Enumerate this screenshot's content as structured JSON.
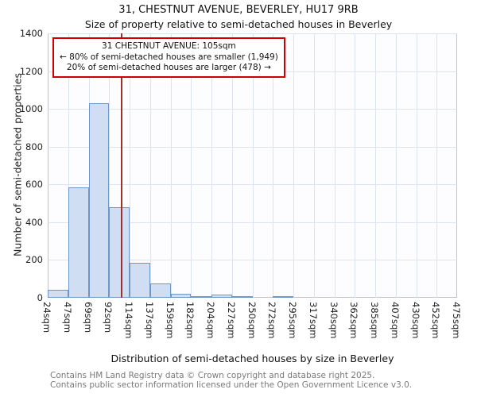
{
  "title": "31, CHESTNUT AVENUE, BEVERLEY, HU17 9RB",
  "subtitle": "Size of property relative to semi-detached houses in Beverley",
  "chart_data": {
    "type": "bar",
    "title": "31, CHESTNUT AVENUE, BEVERLEY, HU17 9RB",
    "subtitle": "Size of property relative to semi-detached houses in Beverley",
    "xlabel": "Distribution of semi-detached houses by size in Beverley",
    "ylabel": "Number of semi-detached properties",
    "ylim": [
      0,
      1400
    ],
    "ytick_step": 200,
    "grid": true,
    "bin_edges_sqm": [
      24,
      47,
      69,
      92,
      114,
      137,
      159,
      182,
      204,
      227,
      250,
      272,
      295,
      317,
      340,
      362,
      385,
      407,
      430,
      452,
      475
    ],
    "x_tick_labels": [
      "24sqm",
      "47sqm",
      "69sqm",
      "92sqm",
      "114sqm",
      "137sqm",
      "159sqm",
      "182sqm",
      "204sqm",
      "227sqm",
      "250sqm",
      "272sqm",
      "295sqm",
      "317sqm",
      "340sqm",
      "362sqm",
      "385sqm",
      "407sqm",
      "430sqm",
      "452sqm",
      "475sqm"
    ],
    "values": [
      40,
      585,
      1030,
      480,
      185,
      75,
      20,
      10,
      15,
      8,
      0,
      10,
      0,
      0,
      0,
      0,
      0,
      0,
      0,
      0
    ],
    "marker_value_sqm": 105,
    "marker_color": "#9e2f2f",
    "bar_fill": "#cfdef2",
    "bar_border": "#6e96c8",
    "annotation_border": "#cc0000",
    "legend_position": "none"
  },
  "annotation": {
    "line1": "31 CHESTNUT AVENUE: 105sqm",
    "line2": "← 80% of semi-detached houses are smaller (1,949)",
    "line3": "20% of semi-detached houses are larger (478) →"
  },
  "footer": {
    "line1": "Contains HM Land Registry data © Crown copyright and database right 2025.",
    "line2": "Contains public sector information licensed under the Open Government Licence v3.0."
  }
}
